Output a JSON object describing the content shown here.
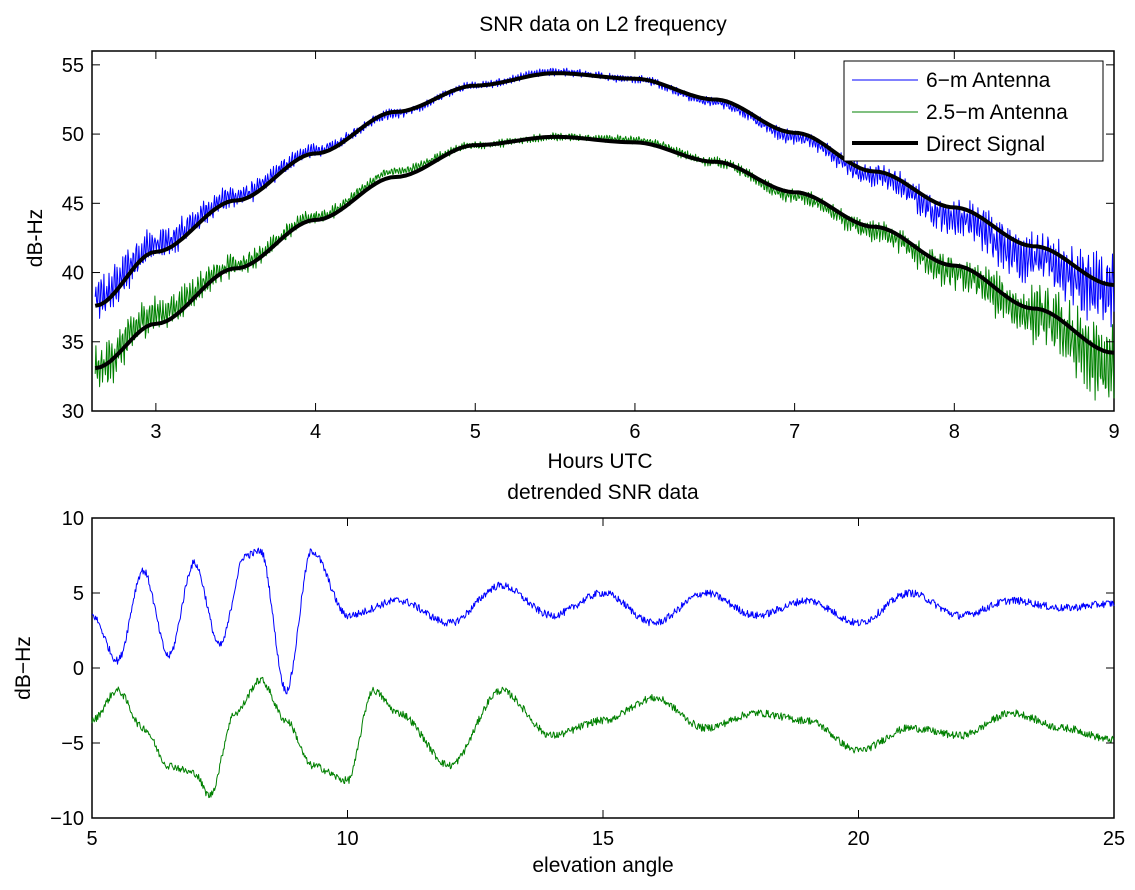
{
  "chart_data": [
    {
      "type": "line",
      "title": "SNR data on L2 frequency",
      "xlabel": "Hours UTC",
      "ylabel": "dB-Hz",
      "xlim": [
        2.6,
        9
      ],
      "ylim": [
        30,
        56
      ],
      "xticks": [
        "3",
        "4",
        "5",
        "6",
        "7",
        "8",
        "9"
      ],
      "yticks": [
        "30",
        "35",
        "40",
        "45",
        "50",
        "55"
      ],
      "legend": {
        "placement": "top-right",
        "entries": [
          "6−m Antenna",
          "2.5−m Antenna",
          "Direct Signal"
        ]
      },
      "series": [
        {
          "name": "6−m Antenna",
          "color": "#0000ff",
          "x": [
            2.62,
            3.0,
            3.5,
            4.0,
            4.5,
            5.0,
            5.5,
            6.0,
            6.5,
            7.0,
            7.5,
            8.0,
            8.5,
            9.0
          ],
          "y": [
            38,
            42,
            45.5,
            48.8,
            51.5,
            53.5,
            54.5,
            54.0,
            52.3,
            49.8,
            47.0,
            44.0,
            41.0,
            38.5
          ]
        },
        {
          "name": "2.5−m Antenna",
          "color": "#008000",
          "x": [
            2.62,
            3.0,
            3.5,
            4.0,
            4.5,
            5.0,
            5.5,
            6.0,
            6.5,
            7.0,
            7.5,
            8.0,
            8.5,
            9.0
          ],
          "y": [
            33,
            37,
            40.5,
            44,
            47.3,
            49.2,
            49.8,
            49.6,
            48,
            45.5,
            43,
            40,
            37,
            33
          ]
        },
        {
          "name": "Direct Signal",
          "color": "#000000",
          "x": [
            2.62,
            3.0,
            3.5,
            4.0,
            4.5,
            5.0,
            5.5,
            6.0,
            6.5,
            7.0,
            7.5,
            8.0,
            8.5,
            9.0
          ],
          "y": [
            37.6,
            41.5,
            45.2,
            48.6,
            51.6,
            53.5,
            54.4,
            54.0,
            52.5,
            50.1,
            47.3,
            44.7,
            41.9,
            39.1
          ]
        },
        {
          "name": "Direct Signal (2.5−m)",
          "color": "#000000",
          "x": [
            2.62,
            3.0,
            3.5,
            4.0,
            4.5,
            5.0,
            5.5,
            6.0,
            6.5,
            7.0,
            7.5,
            8.0,
            8.5,
            9.0
          ],
          "y": [
            33.1,
            36.3,
            40.3,
            43.8,
            46.9,
            49.2,
            49.8,
            49.4,
            48.0,
            45.8,
            43.3,
            40.5,
            37.4,
            34.2
          ]
        }
      ]
    },
    {
      "type": "line",
      "title": "detrended SNR data",
      "xlabel": "elevation angle",
      "ylabel": "dB−Hz",
      "xlim": [
        5,
        25
      ],
      "ylim": [
        -10,
        10
      ],
      "xticks": [
        "5",
        "10",
        "15",
        "20",
        "25"
      ],
      "yticks": [
        "−10",
        "−5",
        "0",
        "5",
        "10"
      ],
      "series": [
        {
          "color": "#0000ff",
          "x": [
            5,
            5.5,
            6,
            6.5,
            7,
            7.5,
            8,
            8.3,
            8.8,
            9.3,
            10,
            11,
            12,
            13,
            14,
            15,
            16,
            17,
            18,
            19,
            20,
            21,
            22,
            23,
            24,
            25
          ],
          "y": [
            3.5,
            0.5,
            6.5,
            0.8,
            7.0,
            1.5,
            7.5,
            7.8,
            -1.5,
            7.8,
            3.5,
            4.5,
            3.0,
            5.5,
            3.5,
            5.0,
            3.0,
            5.0,
            3.5,
            4.5,
            3.0,
            5.0,
            3.5,
            4.5,
            4.0,
            4.3
          ]
        },
        {
          "color": "#008000",
          "x": [
            5,
            5.5,
            6,
            6.5,
            7,
            7.3,
            7.8,
            8.3,
            8.8,
            9.3,
            10,
            10.5,
            11,
            12,
            13,
            14,
            15,
            16,
            17,
            18,
            19,
            20,
            21,
            22,
            23,
            24,
            25
          ],
          "y": [
            -3.5,
            -1.5,
            -4.0,
            -6.5,
            -7.0,
            -8.5,
            -3.0,
            -0.8,
            -3.5,
            -6.5,
            -7.5,
            -1.5,
            -3.0,
            -6.5,
            -1.5,
            -4.5,
            -3.5,
            -2.0,
            -4.0,
            -3.0,
            -3.5,
            -5.5,
            -4.0,
            -4.5,
            -3.0,
            -4.0,
            -4.8
          ]
        }
      ]
    }
  ]
}
